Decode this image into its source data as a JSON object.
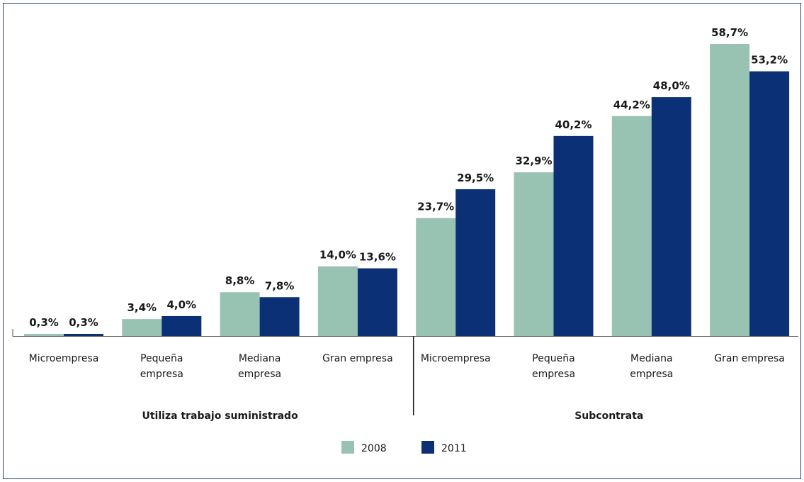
{
  "chart_data": {
    "type": "bar",
    "groups": [
      {
        "label": "Utiliza trabajo suministrado",
        "categories": [
          [
            "Microempresa"
          ],
          [
            "Pequeña",
            "empresa"
          ],
          [
            "Mediana",
            "empresa"
          ],
          [
            "Gran empresa"
          ]
        ],
        "series": [
          {
            "name": "2008",
            "values": [
              0.3,
              3.4,
              8.8,
              14.0
            ],
            "labels": [
              "0,3%",
              "3,4%",
              "8,8%",
              "14,0%"
            ]
          },
          {
            "name": "2011",
            "values": [
              0.3,
              4.0,
              7.8,
              13.6
            ],
            "labels": [
              "0,3%",
              "4,0%",
              "7,8%",
              "13,6%"
            ]
          }
        ]
      },
      {
        "label": "Subcontrata",
        "categories": [
          [
            "Microempresa"
          ],
          [
            "Pequeña",
            "empresa"
          ],
          [
            "Mediana",
            "empresa"
          ],
          [
            "Gran empresa"
          ]
        ],
        "series": [
          {
            "name": "2008",
            "values": [
              23.7,
              32.9,
              44.2,
              58.7
            ],
            "labels": [
              "23,7%",
              "32,9%",
              "44,2%",
              "58,7%"
            ]
          },
          {
            "name": "2011",
            "values": [
              29.5,
              40.2,
              48.0,
              53.2
            ],
            "labels": [
              "29,5%",
              "40,2%",
              "48,0%",
              "53,2%"
            ]
          }
        ]
      }
    ],
    "ylim": [
      0,
      60
    ],
    "unit": "%",
    "grid": false,
    "legend_position": "bottom-center",
    "colors": {
      "2008": "#98c3b2",
      "2011": "#0b3075"
    }
  }
}
